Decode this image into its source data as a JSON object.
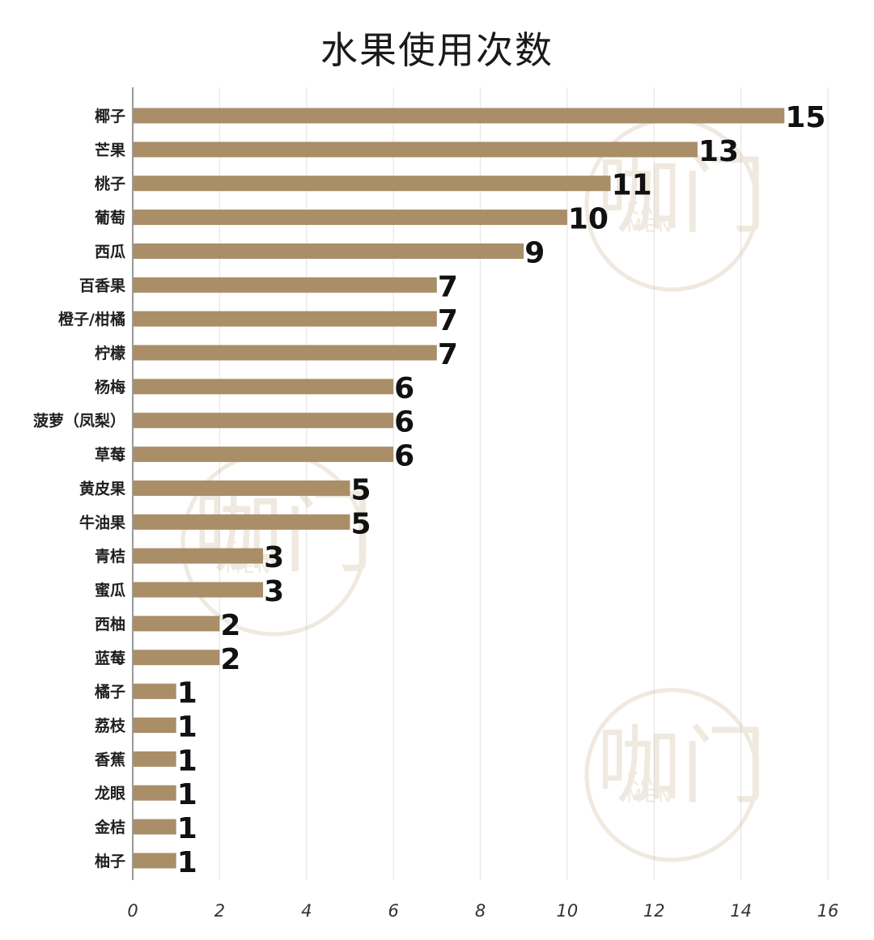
{
  "chart_data": {
    "type": "bar",
    "orientation": "horizontal",
    "title": "水果使用次数",
    "categories": [
      "椰子",
      "芒果",
      "桃子",
      "葡萄",
      "西瓜",
      "百香果",
      "橙子/柑橘",
      "柠檬",
      "杨梅",
      "菠萝（凤梨）",
      "草莓",
      "黄皮果",
      "牛油果",
      "青桔",
      "蜜瓜",
      "西柚",
      "蓝莓",
      "橘子",
      "荔枝",
      "香蕉",
      "龙眼",
      "金桔",
      "柚子"
    ],
    "values": [
      15,
      13,
      11,
      10,
      9,
      7,
      7,
      7,
      6,
      6,
      6,
      5,
      5,
      3,
      3,
      2,
      2,
      1,
      1,
      1,
      1,
      1,
      1
    ],
    "xlim": [
      0,
      16
    ],
    "xticks": [
      0,
      2,
      4,
      6,
      8,
      10,
      12,
      14,
      16
    ],
    "grid": "vertical",
    "bar_color": "#a98e68",
    "watermark": {
      "brand_cn": "咖门",
      "brand_en_1": "KA",
      "brand_en_2": "MEN"
    }
  }
}
